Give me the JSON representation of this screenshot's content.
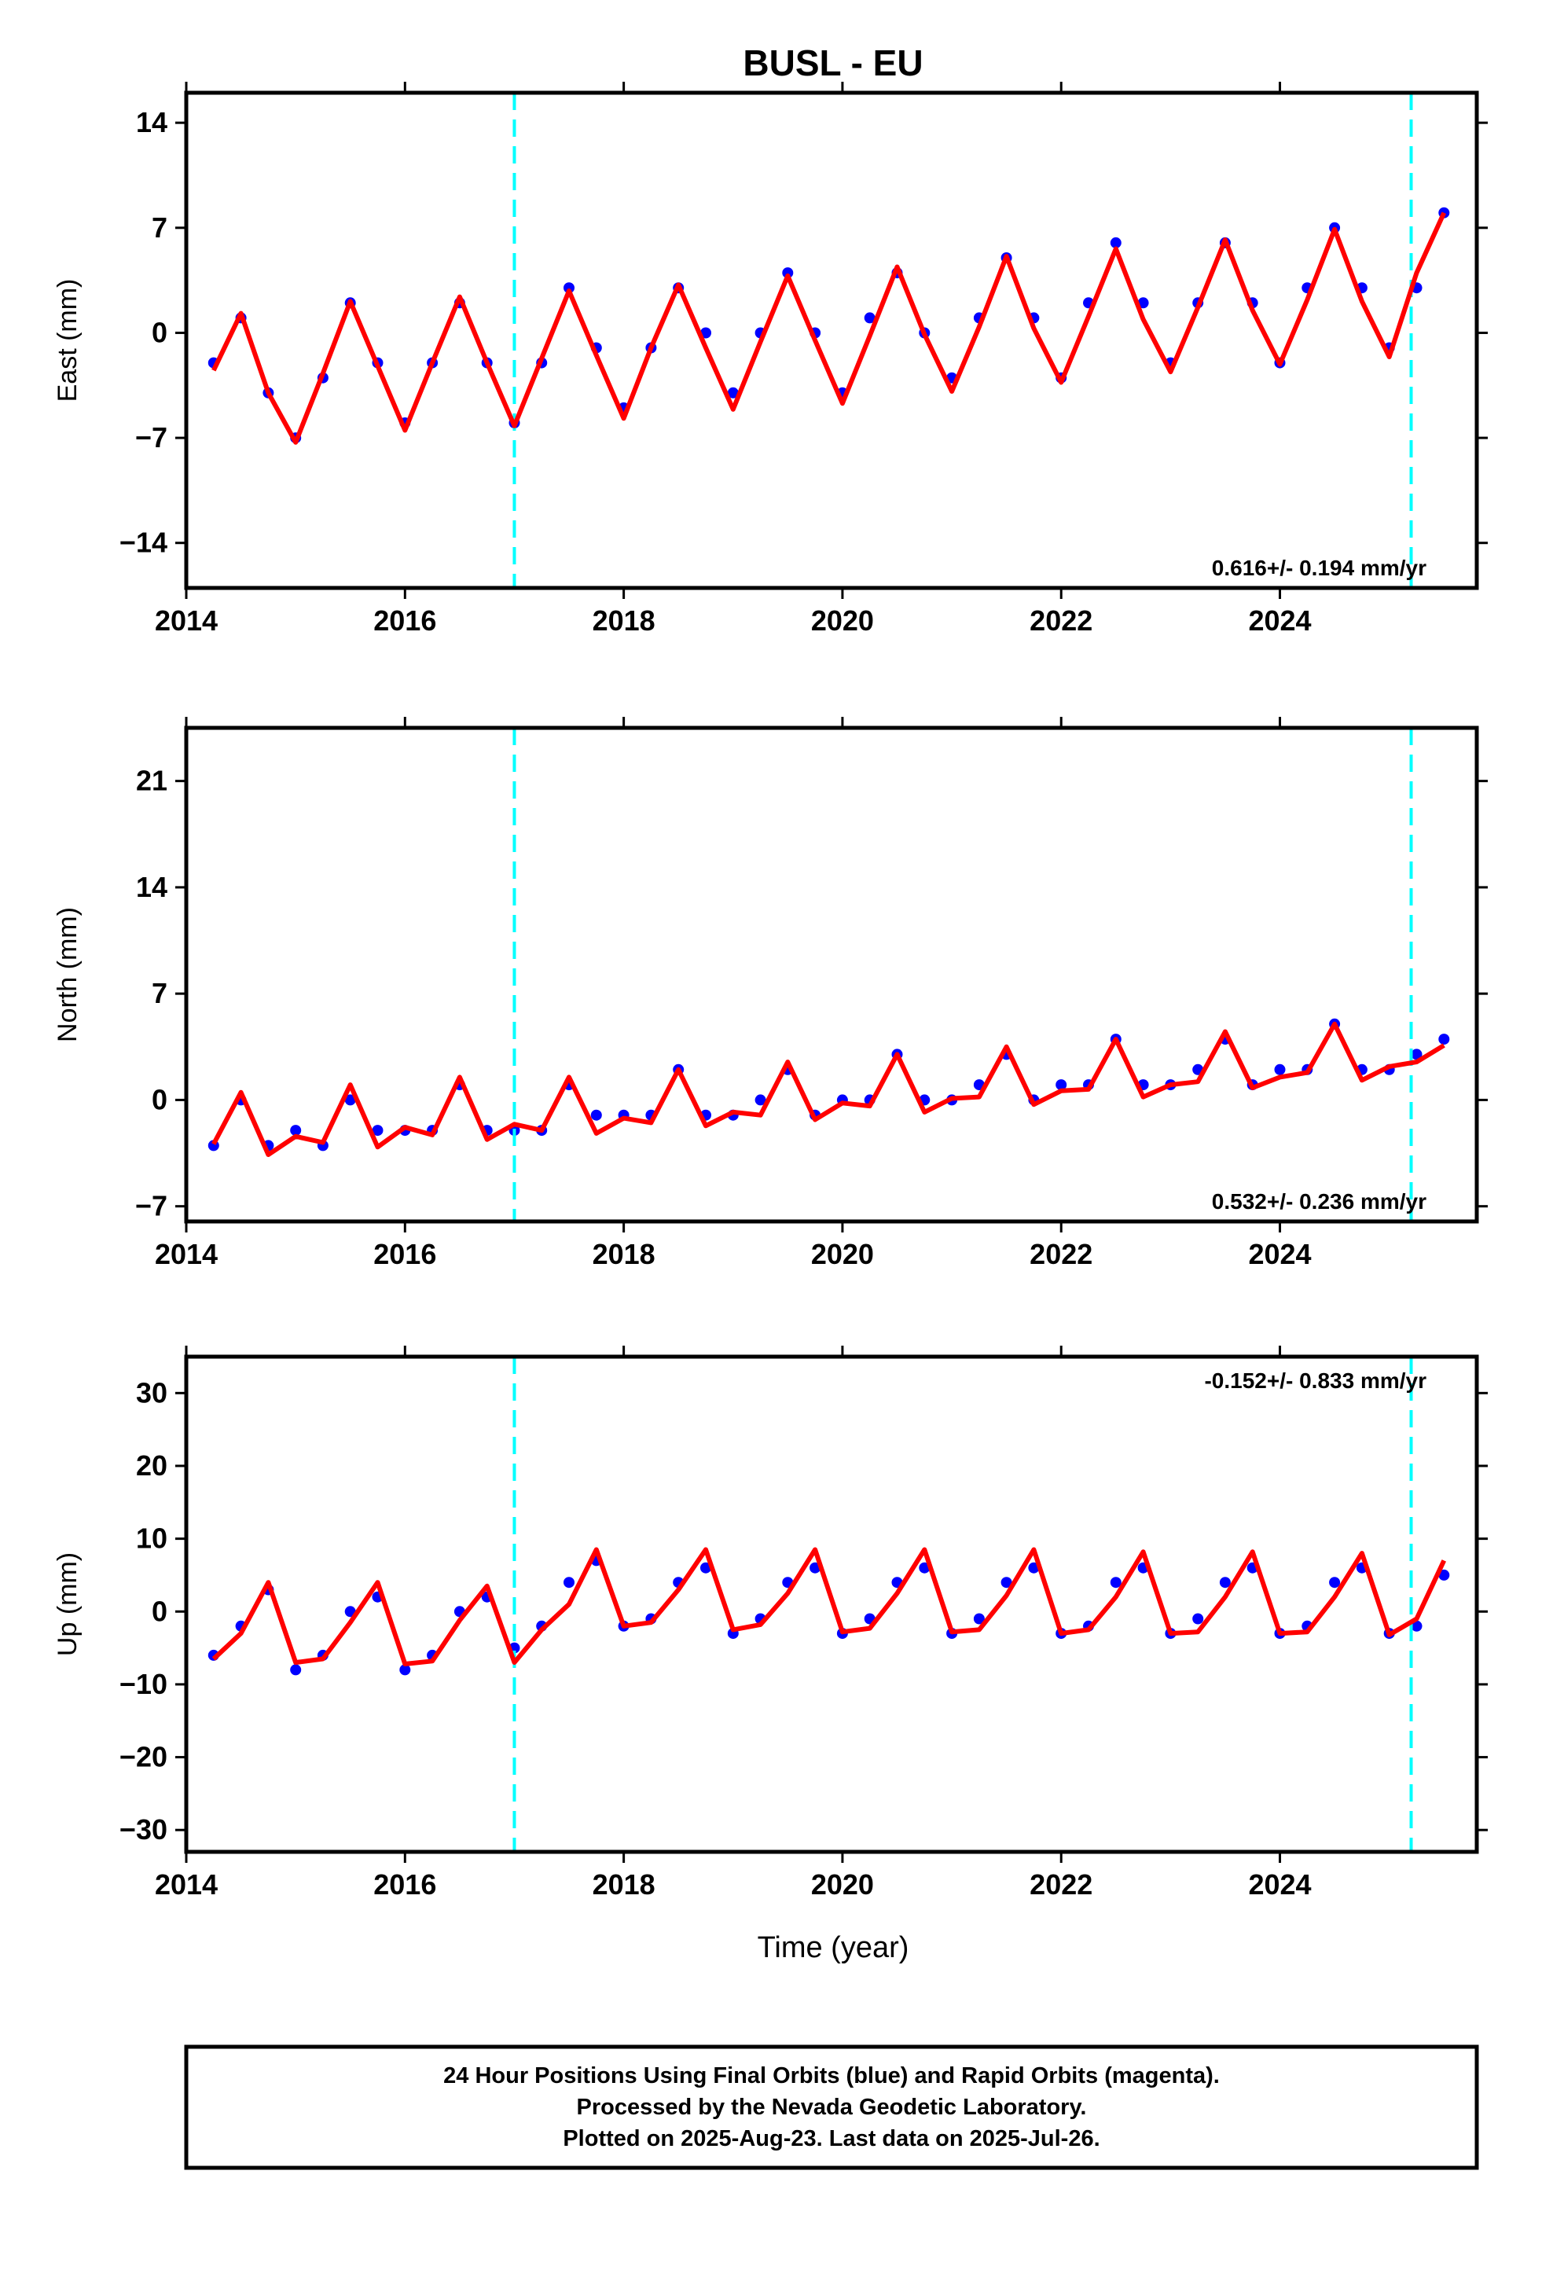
{
  "title": "BUSL - EU",
  "colors": {
    "data": "#0000ff",
    "model": "#ff0000",
    "marker": "#00ffff",
    "frame": "#000000"
  },
  "xaxis": {
    "label": "Time (year)",
    "range": [
      2014.0,
      2025.8
    ],
    "ticks": [
      2014,
      2016,
      2018,
      2020,
      2022,
      2024
    ]
  },
  "markers": {
    "label": "",
    "x": [
      2017.0,
      2025.2
    ]
  },
  "chart_data": [
    {
      "type": "scatter",
      "ylabel": "East (mm)",
      "ylim": [
        -17,
        16
      ],
      "yticks": [
        -14,
        -7,
        0,
        7,
        14
      ],
      "rate_label": "0.616+/- 0.194 mm/yr",
      "x": [
        2014.25,
        2014.5,
        2014.75,
        2015.0,
        2015.25,
        2015.5,
        2015.75,
        2016.0,
        2016.25,
        2016.5,
        2016.75,
        2017.0,
        2017.25,
        2017.5,
        2017.75,
        2018.0,
        2018.25,
        2018.5,
        2018.75,
        2019.0,
        2019.25,
        2019.5,
        2019.75,
        2020.0,
        2020.25,
        2020.5,
        2020.75,
        2021.0,
        2021.25,
        2021.5,
        2021.75,
        2022.0,
        2022.25,
        2022.5,
        2022.75,
        2023.0,
        2023.25,
        2023.5,
        2023.75,
        2024.0,
        2024.25,
        2024.5,
        2024.75,
        2025.0,
        2025.25,
        2025.5
      ],
      "series": [
        {
          "role": "observations",
          "values": [
            -2,
            1,
            -4,
            -7,
            -3,
            2,
            -2,
            -6,
            -2,
            2,
            -2,
            -6,
            -2,
            3,
            -1,
            -5,
            -1,
            3,
            0,
            -4,
            0,
            4,
            0,
            -4,
            1,
            4,
            0,
            -3,
            1,
            5,
            1,
            -3,
            2,
            6,
            2,
            -2,
            2,
            6,
            2,
            -2,
            3,
            7,
            3,
            -1,
            3,
            8
          ]
        },
        {
          "role": "fit",
          "values": [
            -2.5,
            1.3,
            -4.0,
            -7.3,
            -2.7,
            2.1,
            -2.2,
            -6.5,
            -2.0,
            2.4,
            -2.0,
            -6.2,
            -1.7,
            2.8,
            -1.5,
            -5.7,
            -1.0,
            3.2,
            -1.0,
            -5.1,
            -0.6,
            3.8,
            -0.5,
            -4.7,
            -0.2,
            4.4,
            -0.1,
            -3.9,
            0.4,
            5.1,
            0.3,
            -3.3,
            1.1,
            5.6,
            0.9,
            -2.6,
            1.7,
            6.2,
            1.5,
            -2.1,
            2.2,
            6.9,
            2.1,
            -1.6,
            4.0,
            8.0
          ]
        }
      ]
    },
    {
      "type": "scatter",
      "ylabel": "North (mm)",
      "ylim": [
        -8,
        24.5
      ],
      "yticks": [
        -7,
        0,
        7,
        14,
        21
      ],
      "rate_label": "0.532+/- 0.236 mm/yr",
      "x": [
        2014.25,
        2014.5,
        2014.75,
        2015.0,
        2015.25,
        2015.5,
        2015.75,
        2016.0,
        2016.25,
        2016.5,
        2016.75,
        2017.0,
        2017.25,
        2017.5,
        2017.75,
        2018.0,
        2018.25,
        2018.5,
        2018.75,
        2019.0,
        2019.25,
        2019.5,
        2019.75,
        2020.0,
        2020.25,
        2020.5,
        2020.75,
        2021.0,
        2021.25,
        2021.5,
        2021.75,
        2022.0,
        2022.25,
        2022.5,
        2022.75,
        2023.0,
        2023.25,
        2023.5,
        2023.75,
        2024.0,
        2024.25,
        2024.5,
        2024.75,
        2025.0,
        2025.25,
        2025.5
      ],
      "series": [
        {
          "role": "observations",
          "values": [
            -3,
            0,
            -3,
            -2,
            -3,
            0,
            -2,
            -2,
            -2,
            1,
            -2,
            -2,
            -2,
            1,
            -1,
            -1,
            -1,
            2,
            -1,
            -1,
            0,
            2,
            -1,
            0,
            0,
            3,
            0,
            0,
            1,
            3,
            0,
            1,
            1,
            4,
            1,
            1,
            2,
            4,
            1,
            2,
            2,
            5,
            2,
            2,
            3,
            4
          ]
        },
        {
          "role": "fit",
          "values": [
            -2.9,
            0.5,
            -3.6,
            -2.4,
            -2.8,
            1.0,
            -3.1,
            -1.8,
            -2.3,
            1.5,
            -2.6,
            -1.6,
            -2.0,
            1.5,
            -2.2,
            -1.2,
            -1.5,
            2.0,
            -1.7,
            -0.8,
            -1.0,
            2.5,
            -1.3,
            -0.2,
            -0.4,
            3.0,
            -0.8,
            0.1,
            0.2,
            3.5,
            -0.3,
            0.6,
            0.7,
            4.0,
            0.2,
            1.0,
            1.2,
            4.5,
            0.8,
            1.5,
            1.8,
            5.0,
            1.3,
            2.2,
            2.5,
            3.6
          ]
        }
      ]
    },
    {
      "type": "scatter",
      "ylabel": "Up (mm)",
      "ylim": [
        -33,
        35
      ],
      "yticks": [
        -30,
        -20,
        -10,
        0,
        10,
        20,
        30
      ],
      "rate_label": "-0.152+/- 0.833 mm/yr",
      "x": [
        2014.25,
        2014.5,
        2014.75,
        2015.0,
        2015.25,
        2015.5,
        2015.75,
        2016.0,
        2016.25,
        2016.5,
        2016.75,
        2017.0,
        2017.25,
        2017.5,
        2017.75,
        2018.0,
        2018.25,
        2018.5,
        2018.75,
        2019.0,
        2019.25,
        2019.5,
        2019.75,
        2020.0,
        2020.25,
        2020.5,
        2020.75,
        2021.0,
        2021.25,
        2021.5,
        2021.75,
        2022.0,
        2022.25,
        2022.5,
        2022.75,
        2023.0,
        2023.25,
        2023.5,
        2023.75,
        2024.0,
        2024.25,
        2024.5,
        2024.75,
        2025.0,
        2025.25,
        2025.5
      ],
      "series": [
        {
          "role": "observations",
          "values": [
            -6,
            -2,
            3,
            -8,
            -6,
            0,
            2,
            -8,
            -6,
            0,
            2,
            -5,
            -2,
            4,
            7,
            -2,
            -1,
            4,
            6,
            -3,
            -1,
            4,
            6,
            -3,
            -1,
            4,
            6,
            -3,
            -1,
            4,
            6,
            -3,
            -2,
            4,
            6,
            -3,
            -1,
            4,
            6,
            -3,
            -2,
            4,
            6,
            -3,
            -2,
            5
          ]
        },
        {
          "role": "fit",
          "values": [
            -6.5,
            -3.0,
            4.0,
            -7.0,
            -6.5,
            -1.5,
            4.0,
            -7.2,
            -6.8,
            -1.2,
            3.5,
            -7.0,
            -2.5,
            1.0,
            8.5,
            -2.0,
            -1.5,
            3.0,
            8.5,
            -2.5,
            -1.8,
            2.5,
            8.5,
            -2.8,
            -2.3,
            2.5,
            8.5,
            -2.8,
            -2.5,
            2.2,
            8.5,
            -3.0,
            -2.5,
            2.0,
            8.2,
            -3.0,
            -2.8,
            2.0,
            8.2,
            -3.0,
            -2.8,
            2.0,
            8.0,
            -3.2,
            -1.0,
            7.0
          ]
        }
      ]
    }
  ],
  "footer": {
    "line1": "24 Hour Positions Using Final Orbits (blue) and Rapid Orbits (magenta).",
    "line2": "Processed by the Nevada Geodetic Laboratory.",
    "line3": "Plotted on 2025-Aug-23. Last data on 2025-Jul-26."
  }
}
